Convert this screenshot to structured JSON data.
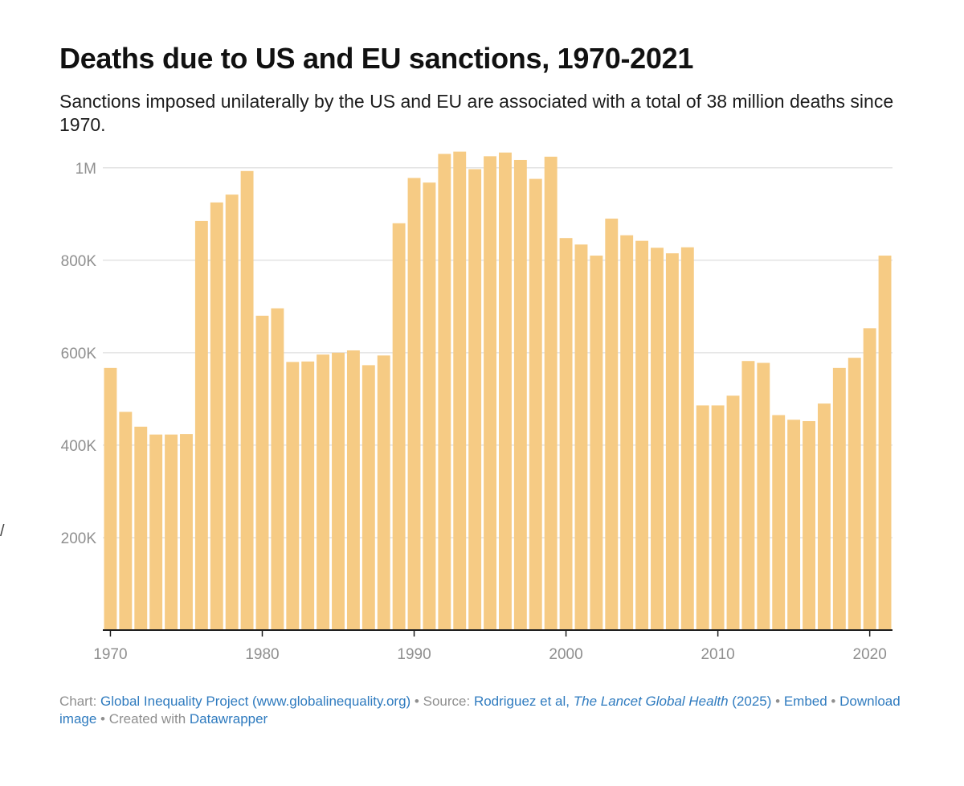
{
  "header": {
    "title": "Deaths due to US and EU sanctions, 1970-2021",
    "subtitle": "Sanctions imposed unilaterally by the US and EU are associated with a total of 38 million deaths since 1970."
  },
  "colors": {
    "bar": "#f6cb84",
    "grid": "#e3e3e3",
    "axis": "#1d1d1d",
    "tick_text": "#8f8f8f",
    "link": "#2f7bbf"
  },
  "chart_data": {
    "type": "bar",
    "title": "Deaths due to US and EU sanctions, 1970-2021",
    "subtitle": "Sanctions imposed unilaterally by the US and EU are associated with a total of 38 million deaths since 1970.",
    "xlabel": "",
    "ylabel": "",
    "categories": [
      1970,
      1971,
      1972,
      1973,
      1974,
      1975,
      1976,
      1977,
      1978,
      1979,
      1980,
      1981,
      1982,
      1983,
      1984,
      1985,
      1986,
      1987,
      1988,
      1989,
      1990,
      1991,
      1992,
      1993,
      1994,
      1995,
      1996,
      1997,
      1998,
      1999,
      2000,
      2001,
      2002,
      2003,
      2004,
      2005,
      2006,
      2007,
      2008,
      2009,
      2010,
      2011,
      2012,
      2013,
      2014,
      2015,
      2016,
      2017,
      2018,
      2019,
      2020,
      2021
    ],
    "values": [
      567000,
      472000,
      440000,
      423000,
      423000,
      424000,
      885000,
      925000,
      942000,
      993000,
      680000,
      696000,
      580000,
      581000,
      596000,
      600000,
      605000,
      573000,
      594000,
      880000,
      978000,
      968000,
      1030000,
      1035000,
      997000,
      1025000,
      1033000,
      1017000,
      976000,
      1024000,
      848000,
      834000,
      810000,
      890000,
      854000,
      842000,
      827000,
      815000,
      828000,
      486000,
      486000,
      507000,
      582000,
      578000,
      465000,
      455000,
      452000,
      490000,
      567000,
      589000,
      653000,
      810000
    ],
    "ylim": [
      0,
      1050000
    ],
    "y_ticks": [
      200000,
      400000,
      600000,
      800000,
      1000000
    ],
    "y_tick_labels": [
      "200K",
      "400K",
      "600K",
      "800K",
      "1M"
    ],
    "x_ticks": [
      1970,
      1980,
      1990,
      2000,
      2010,
      2020
    ],
    "x_tick_labels": [
      "1970",
      "1980",
      "1990",
      "2000",
      "2010",
      "2020"
    ],
    "grid": true,
    "legend": "none"
  },
  "footer": {
    "chart_label": "Chart:",
    "chart_link": "Global Inequality Project (www.globalinequality.org)",
    "sep1": " • ",
    "source_label": "Source:",
    "source_link": "Rodriguez et al,",
    "source_journal": "The Lancet Global Health",
    "source_year": "(2025)",
    "sep2": " • ",
    "embed": "Embed",
    "sep3": " • ",
    "download": "Download image",
    "sep4": " • ",
    "created_label": "Created with",
    "created_link": "Datawrapper"
  },
  "margin_mark": "/"
}
